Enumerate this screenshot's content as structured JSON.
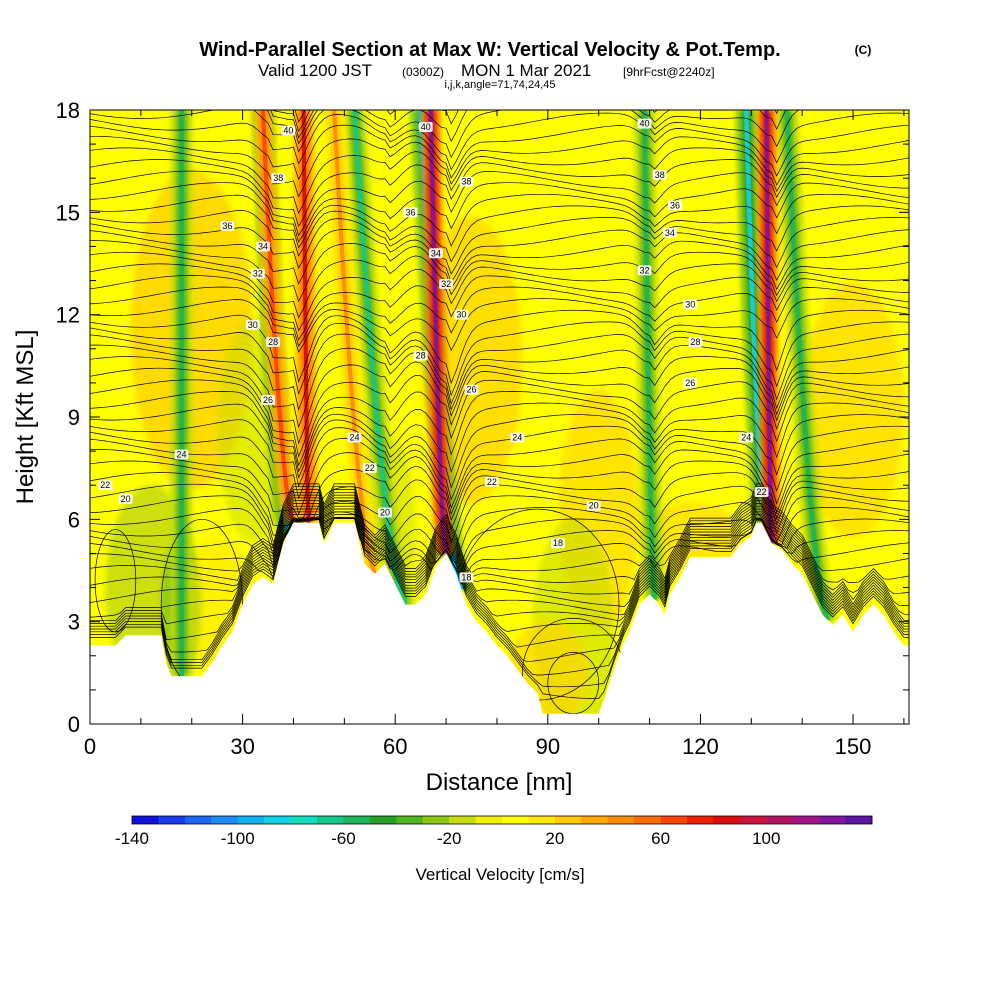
{
  "chart_data": {
    "type": "heatmap",
    "title": "Wind-Parallel Section at Max W: Vertical Velocity & Pot.Temp.",
    "title_mark": "(C)",
    "subtitle": {
      "valid": "Valid 1200 JST",
      "utc": "(0300Z)",
      "date": "MON 1 Mar 2021",
      "fcst": "[9hrFcst@2240z]"
    },
    "subsubtitle": "i,j,k,angle=71,74,24,45",
    "xlabel": "Distance [nm]",
    "ylabel": "Height [Kft MSL]",
    "xlim": [
      0,
      161
    ],
    "ylim": [
      0,
      18
    ],
    "x_ticks": [
      0,
      30,
      60,
      90,
      120,
      150
    ],
    "y_ticks": [
      0,
      3,
      6,
      9,
      12,
      15,
      18
    ],
    "colorbar": {
      "label": "Vertical Velocity [cm/s]",
      "range": [
        -140,
        140
      ],
      "tick_labels": [
        -140,
        -100,
        -60,
        -20,
        20,
        60,
        100
      ],
      "colors": [
        "#1010e0",
        "#1a3cf0",
        "#1e64f5",
        "#1e8cf5",
        "#10b4f0",
        "#10d2e6",
        "#10dcbe",
        "#14c88c",
        "#1eb45a",
        "#28a028",
        "#50b41e",
        "#8cc814",
        "#c8dc0a",
        "#f0f000",
        "#ffff00",
        "#ffe600",
        "#ffc800",
        "#ffaa00",
        "#ff8c00",
        "#ff6e00",
        "#ff4600",
        "#f01e00",
        "#dc0a0a",
        "#c8143c",
        "#b41464",
        "#a0148c",
        "#8214a0",
        "#5a14a0"
      ]
    },
    "terrain": [
      [
        0,
        2.3
      ],
      [
        5,
        2.3
      ],
      [
        7,
        2.6
      ],
      [
        14,
        2.6
      ],
      [
        15,
        1.8
      ],
      [
        16,
        1.4
      ],
      [
        22,
        1.4
      ],
      [
        24,
        1.8
      ],
      [
        26,
        2.3
      ],
      [
        28,
        2.7
      ],
      [
        30,
        3.5
      ],
      [
        32,
        4.1
      ],
      [
        34,
        4.3
      ],
      [
        36,
        4.1
      ],
      [
        38,
        5.3
      ],
      [
        40,
        5.9
      ],
      [
        45,
        5.9
      ],
      [
        46,
        5.3
      ],
      [
        48,
        5.9
      ],
      [
        52,
        5.9
      ],
      [
        54,
        4.7
      ],
      [
        56,
        4.4
      ],
      [
        58,
        4.7
      ],
      [
        60,
        4.1
      ],
      [
        62,
        3.5
      ],
      [
        64,
        3.5
      ],
      [
        66,
        3.8
      ],
      [
        68,
        4.6
      ],
      [
        70,
        5.0
      ],
      [
        72,
        4.4
      ],
      [
        74,
        3.5
      ],
      [
        76,
        3.0
      ],
      [
        78,
        2.7
      ],
      [
        80,
        2.3
      ],
      [
        82,
        2.0
      ],
      [
        84,
        1.6
      ],
      [
        86,
        1.2
      ],
      [
        88,
        0.9
      ],
      [
        89,
        0.3
      ],
      [
        100,
        0.3
      ],
      [
        101,
        0.7
      ],
      [
        103,
        1.6
      ],
      [
        105,
        2.4
      ],
      [
        106,
        2.7
      ],
      [
        108,
        3.5
      ],
      [
        110,
        3.8
      ],
      [
        112,
        3.5
      ],
      [
        113,
        3.2
      ],
      [
        114,
        3.8
      ],
      [
        116,
        4.3
      ],
      [
        118,
        4.9
      ],
      [
        120,
        4.9
      ],
      [
        126,
        4.9
      ],
      [
        128,
        5.3
      ],
      [
        130,
        5.5
      ],
      [
        131,
        5.9
      ],
      [
        132,
        5.9
      ],
      [
        134,
        5.3
      ],
      [
        136,
        5.1
      ],
      [
        138,
        4.7
      ],
      [
        140,
        4.4
      ],
      [
        142,
        3.8
      ],
      [
        144,
        3.2
      ],
      [
        146,
        2.9
      ],
      [
        148,
        3.2
      ],
      [
        150,
        2.7
      ],
      [
        152,
        3.2
      ],
      [
        154,
        3.5
      ],
      [
        156,
        3.2
      ],
      [
        158,
        2.7
      ],
      [
        160,
        2.3
      ],
      [
        161,
        2.3
      ]
    ],
    "updraft_bands": [
      {
        "x_bottom": 40,
        "x_top": 34,
        "w": 60
      },
      {
        "x_bottom": 43,
        "x_top": 42,
        "w": 80
      },
      {
        "x_bottom": 70,
        "x_top": 67,
        "w": 120
      },
      {
        "x_bottom": 134,
        "x_top": 133,
        "w": 120
      },
      {
        "x_bottom": 56,
        "x_top": 48,
        "w": 40
      }
    ],
    "downdraft_bands": [
      {
        "x_bottom": 39,
        "x_top": 34,
        "w": -60
      },
      {
        "x_bottom": 62,
        "x_top": 52,
        "w": -50
      },
      {
        "x_bottom": 73,
        "x_top": 65,
        "w": -70
      },
      {
        "x_bottom": 133,
        "x_top": 129,
        "w": -60
      },
      {
        "x_bottom": 111,
        "x_top": 109,
        "w": -40
      },
      {
        "x_bottom": 145,
        "x_top": 137,
        "w": -40
      },
      {
        "x_bottom": 18,
        "x_top": 18,
        "w": -40
      }
    ],
    "theta_labels": [
      {
        "text": "40",
        "x": 39,
        "y": 17.4
      },
      {
        "text": "38",
        "x": 37,
        "y": 16.0
      },
      {
        "text": "36",
        "x": 27,
        "y": 14.6
      },
      {
        "text": "34",
        "x": 34,
        "y": 14.0
      },
      {
        "text": "32",
        "x": 33,
        "y": 13.2
      },
      {
        "text": "30",
        "x": 32,
        "y": 11.7
      },
      {
        "text": "28",
        "x": 36,
        "y": 11.2
      },
      {
        "text": "26",
        "x": 35,
        "y": 9.5
      },
      {
        "text": "24",
        "x": 18,
        "y": 7.9
      },
      {
        "text": "22",
        "x": 3,
        "y": 7.0
      },
      {
        "text": "20",
        "x": 7,
        "y": 6.6
      },
      {
        "text": "40",
        "x": 66,
        "y": 17.5
      },
      {
        "text": "38",
        "x": 74,
        "y": 15.9
      },
      {
        "text": "36",
        "x": 63,
        "y": 15.0
      },
      {
        "text": "34",
        "x": 68,
        "y": 13.8
      },
      {
        "text": "32",
        "x": 70,
        "y": 12.9
      },
      {
        "text": "30",
        "x": 73,
        "y": 12.0
      },
      {
        "text": "28",
        "x": 65,
        "y": 10.8
      },
      {
        "text": "26",
        "x": 75,
        "y": 9.8
      },
      {
        "text": "24",
        "x": 52,
        "y": 8.4
      },
      {
        "text": "22",
        "x": 55,
        "y": 7.5
      },
      {
        "text": "20",
        "x": 58,
        "y": 6.2
      },
      {
        "text": "24",
        "x": 84,
        "y": 8.4
      },
      {
        "text": "22",
        "x": 79,
        "y": 7.1
      },
      {
        "text": "20",
        "x": 99,
        "y": 6.4
      },
      {
        "text": "18",
        "x": 92,
        "y": 5.3
      },
      {
        "text": "18",
        "x": 74,
        "y": 4.3
      },
      {
        "text": "40",
        "x": 109,
        "y": 17.6
      },
      {
        "text": "38",
        "x": 112,
        "y": 16.1
      },
      {
        "text": "36",
        "x": 115,
        "y": 15.2
      },
      {
        "text": "34",
        "x": 114,
        "y": 14.4
      },
      {
        "text": "32",
        "x": 109,
        "y": 13.3
      },
      {
        "text": "30",
        "x": 118,
        "y": 12.3
      },
      {
        "text": "28",
        "x": 119,
        "y": 11.2
      },
      {
        "text": "26",
        "x": 118,
        "y": 10.0
      },
      {
        "text": "24",
        "x": 129,
        "y": 8.4
      },
      {
        "text": "22",
        "x": 132,
        "y": 6.8
      }
    ]
  }
}
